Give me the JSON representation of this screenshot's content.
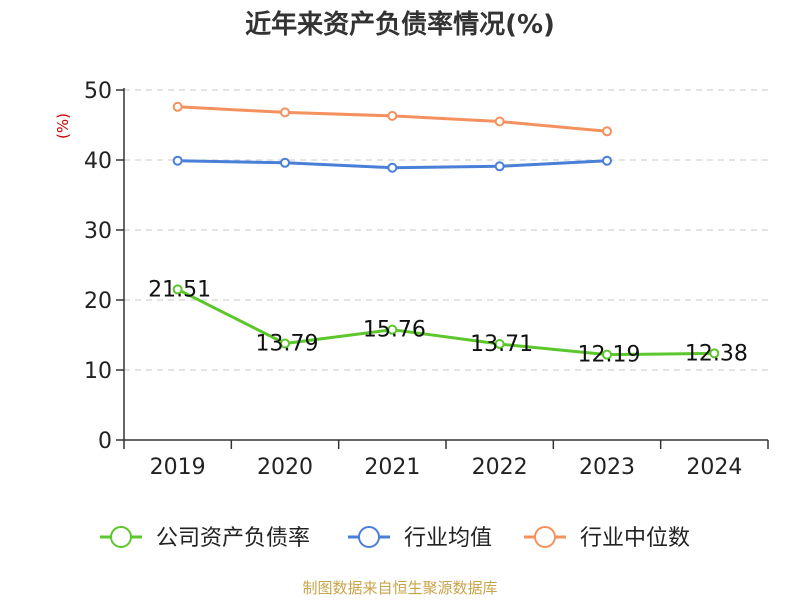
{
  "title": "近年来资产负债率情况(%)",
  "source": "制图数据来自恒生聚源数据库",
  "chart_data": {
    "type": "line",
    "title": "近年来资产负债率情况(%)",
    "ylabel": "(%)",
    "xlabel": "",
    "ylim": [
      0,
      50
    ],
    "yticks": [
      0,
      10,
      20,
      30,
      40,
      50
    ],
    "categories": [
      "2019",
      "2020",
      "2021",
      "2022",
      "2023",
      "2024"
    ],
    "grid": true,
    "legend_position": "bottom",
    "series": [
      {
        "name": "公司资产负债率",
        "color": "#5cc72c",
        "values": [
          21.51,
          13.79,
          15.76,
          13.71,
          12.19,
          12.38
        ],
        "labels": [
          "21.51",
          "13.79",
          "15.76",
          "13.71",
          "12.19",
          "12.38"
        ]
      },
      {
        "name": "行业均值",
        "color": "#4a7fd8",
        "values": [
          39.9,
          39.6,
          38.9,
          39.1,
          39.9,
          null
        ]
      },
      {
        "name": "行业中位数",
        "color": "#f5915e",
        "values": [
          47.6,
          46.8,
          46.3,
          45.5,
          44.1,
          null
        ]
      }
    ]
  }
}
